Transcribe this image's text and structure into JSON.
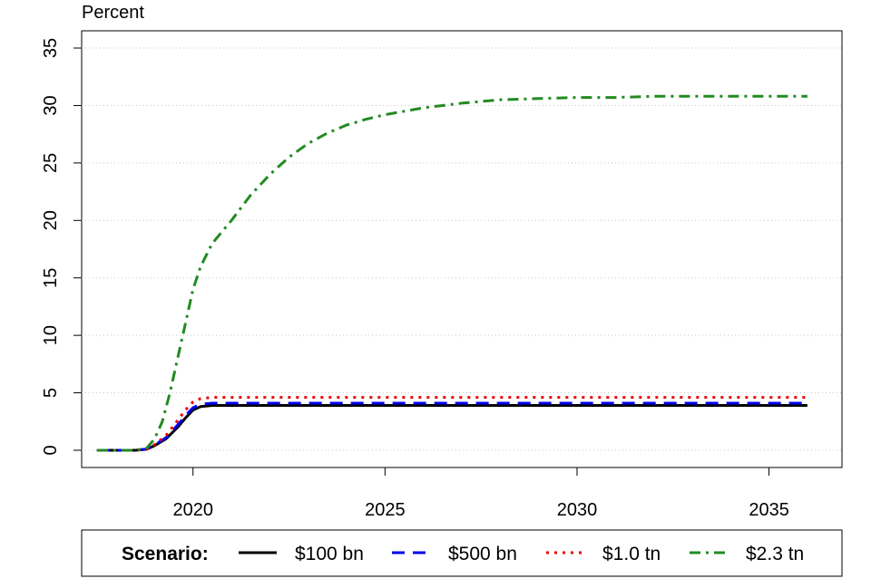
{
  "chart_data": {
    "type": "line",
    "title": "",
    "ylabel_top": "Percent",
    "xlabel": "",
    "xlim": [
      2017.1,
      2036.9
    ],
    "ylim": [
      -1.5,
      36.5
    ],
    "x_ticks": [
      2020,
      2025,
      2030,
      2035
    ],
    "y_ticks": [
      0,
      5,
      10,
      15,
      20,
      25,
      30,
      35
    ],
    "grid": "horizontal dotted",
    "legend": {
      "placement": "bottom",
      "title": "Scenario:"
    },
    "series": [
      {
        "name": "$100 bn",
        "color": "#000000",
        "style": "solid",
        "x": [
          2017.5,
          2018.0,
          2018.5,
          2018.8,
          2019.0,
          2019.3,
          2019.6,
          2019.8,
          2020.0,
          2020.2,
          2020.5,
          2021.0,
          2022.0,
          2025.0,
          2030.0,
          2036.0
        ],
        "y": [
          0,
          0,
          0,
          0.1,
          0.4,
          1.0,
          2.0,
          2.8,
          3.5,
          3.8,
          3.9,
          3.9,
          3.9,
          3.9,
          3.9,
          3.9
        ]
      },
      {
        "name": "$500 bn",
        "color": "#0000ee",
        "style": "dashed",
        "x": [
          2017.5,
          2018.0,
          2018.5,
          2018.8,
          2019.0,
          2019.3,
          2019.6,
          2019.8,
          2020.0,
          2020.2,
          2020.5,
          2021.0,
          2022.0,
          2025.0,
          2030.0,
          2036.0
        ],
        "y": [
          0,
          0,
          0,
          0.1,
          0.45,
          1.1,
          2.2,
          3.0,
          3.7,
          4.0,
          4.1,
          4.1,
          4.1,
          4.1,
          4.1,
          4.1
        ]
      },
      {
        "name": "$1.0 tn",
        "color": "#ee0000",
        "style": "dotted",
        "x": [
          2017.5,
          2018.0,
          2018.5,
          2018.8,
          2019.0,
          2019.3,
          2019.6,
          2019.8,
          2020.0,
          2020.2,
          2020.5,
          2021.0,
          2022.0,
          2025.0,
          2030.0,
          2036.0
        ],
        "y": [
          0,
          0,
          0,
          0.1,
          0.5,
          1.3,
          2.6,
          3.5,
          4.2,
          4.5,
          4.6,
          4.6,
          4.6,
          4.6,
          4.6,
          4.6
        ]
      },
      {
        "name": "$2.3 tn",
        "color": "#228b22",
        "style": "dashdot",
        "x": [
          2017.5,
          2018.0,
          2018.5,
          2018.8,
          2019.0,
          2019.2,
          2019.4,
          2019.6,
          2019.8,
          2020.0,
          2020.2,
          2020.5,
          2021.0,
          2021.5,
          2022.0,
          2022.5,
          2023.0,
          2023.5,
          2024.0,
          2024.5,
          2025.0,
          2026.0,
          2027.0,
          2028.0,
          2029.0,
          2030.0,
          2031.0,
          2032.0,
          2033.0,
          2034.0,
          2035.0,
          2036.0
        ],
        "y": [
          0,
          0,
          0,
          0.2,
          1.0,
          2.5,
          5.0,
          8.0,
          11.0,
          14.0,
          16.0,
          18.0,
          20.0,
          22.2,
          24.0,
          25.5,
          26.7,
          27.6,
          28.3,
          28.8,
          29.2,
          29.8,
          30.2,
          30.5,
          30.6,
          30.7,
          30.7,
          30.8,
          30.8,
          30.8,
          30.8,
          30.8
        ]
      }
    ]
  }
}
